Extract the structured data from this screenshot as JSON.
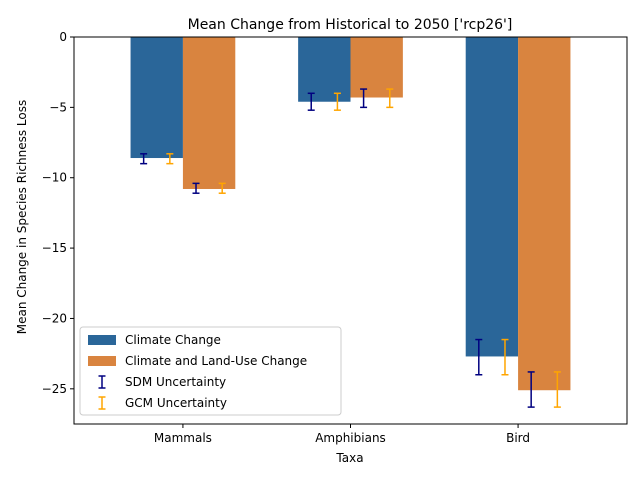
{
  "chart_data": {
    "type": "bar",
    "title": "Mean Change from Historical to 2050 ['rcp26']",
    "xlabel": "Taxa",
    "ylabel": "Mean Change in Species Richness Loss",
    "categories": [
      "Mammals",
      "Amphibians",
      "Bird"
    ],
    "ylim": [
      -27.5,
      0
    ],
    "yticks": [
      0,
      -5,
      -10,
      -15,
      -20,
      -25
    ],
    "ytick_labels": [
      "0",
      "−5",
      "−10",
      "−15",
      "−20",
      "−25"
    ],
    "series": [
      {
        "name": "Climate Change",
        "color": "#2a6699",
        "values": [
          -8.6,
          -4.6,
          -22.7
        ],
        "sdm_error": [
          [
            -9.0,
            -8.3
          ],
          [
            -5.2,
            -4.0
          ],
          [
            -24.0,
            -21.5
          ]
        ],
        "gcm_error": [
          [
            -9.0,
            -8.3
          ],
          [
            -5.2,
            -4.0
          ],
          [
            -24.0,
            -21.5
          ]
        ]
      },
      {
        "name": "Climate and Land-Use Change",
        "color": "#d9843f",
        "values": [
          -10.8,
          -4.3,
          -25.1
        ],
        "sdm_error": [
          [
            -11.1,
            -10.4
          ],
          [
            -5.0,
            -3.7
          ],
          [
            -26.3,
            -23.8
          ]
        ],
        "gcm_error": [
          [
            -11.1,
            -10.4
          ],
          [
            -5.0,
            -3.7
          ],
          [
            -26.3,
            -23.8
          ]
        ]
      }
    ],
    "uncertainty": [
      {
        "name": "SDM Uncertainty",
        "color": "#000080"
      },
      {
        "name": "GCM Uncertainty",
        "color": "#ffa500"
      }
    ],
    "legend_position": "lower-left",
    "grid": false
  }
}
